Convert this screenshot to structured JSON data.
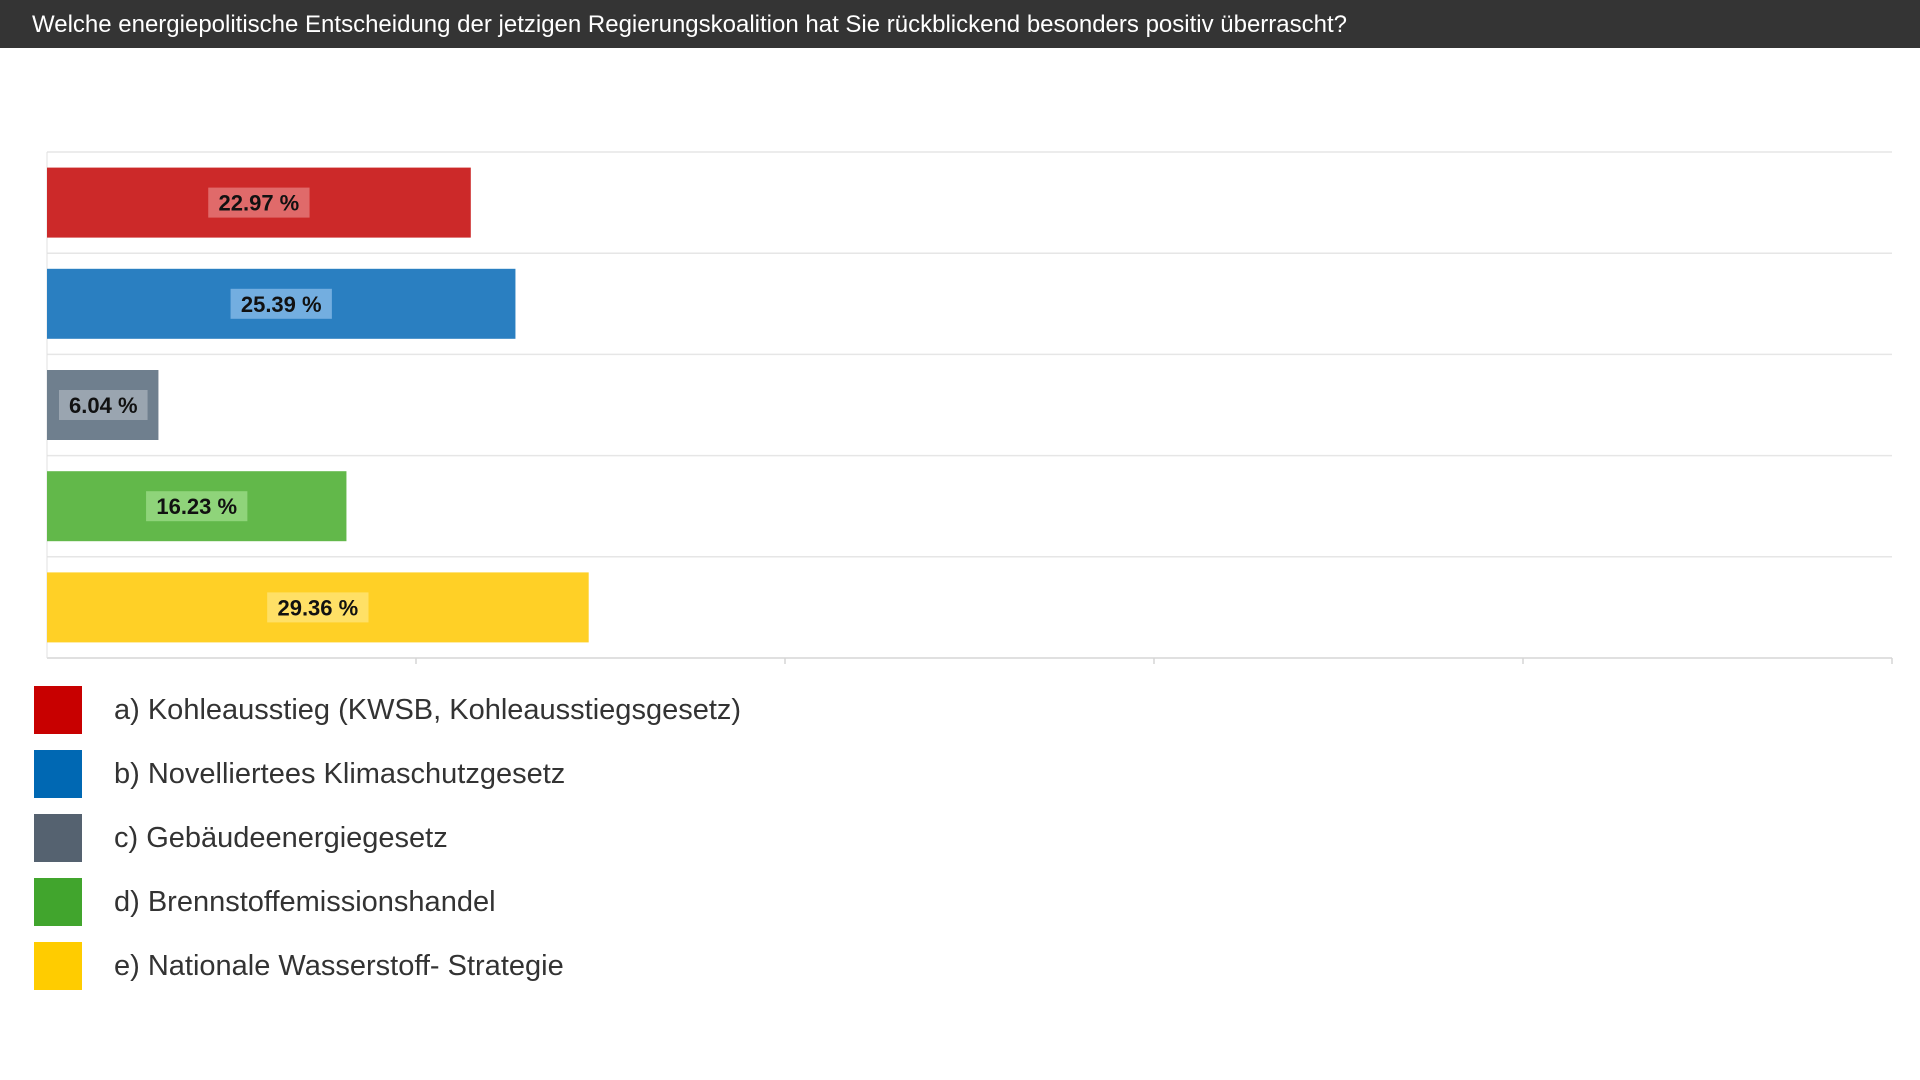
{
  "header": {
    "question": "Welche energiepolitische Entscheidung der jetzigen Regierungskoalition hat Sie rückblickend besonders positiv überrascht?"
  },
  "chart_data": {
    "type": "bar",
    "orientation": "horizontal",
    "title": "",
    "categories": [
      "a) Kohleausstieg (KWSB, Kohleausstiegsgesetz)",
      "b) Novelliertees Klimaschutzgesetz",
      "c) Gebäudeenergiegesetz",
      "d) Brennstoffemissionshandel",
      "e) Nationale Wasserstoff- Strategie"
    ],
    "values": [
      22.97,
      25.39,
      6.04,
      16.23,
      29.36
    ],
    "value_labels": [
      "22.97 %",
      "25.39 %",
      "6.04 %",
      "16.23 %",
      "29.36 %"
    ],
    "unit": "%",
    "xlim": [
      0,
      100
    ],
    "grid": true,
    "legend_position": "bottom",
    "bar_colors": [
      "#cc2929",
      "#2a7fc1",
      "#6f7f8e",
      "#62b84a",
      "#ffd026"
    ],
    "legend_colors": [
      "#c80000",
      "#0068b3",
      "#556270",
      "#41a52d",
      "#ffcc00"
    ],
    "label_bg_colors": [
      "#e06a6a",
      "#73aee0",
      "#9aa5b0",
      "#8fd47a",
      "#ffe066"
    ]
  }
}
